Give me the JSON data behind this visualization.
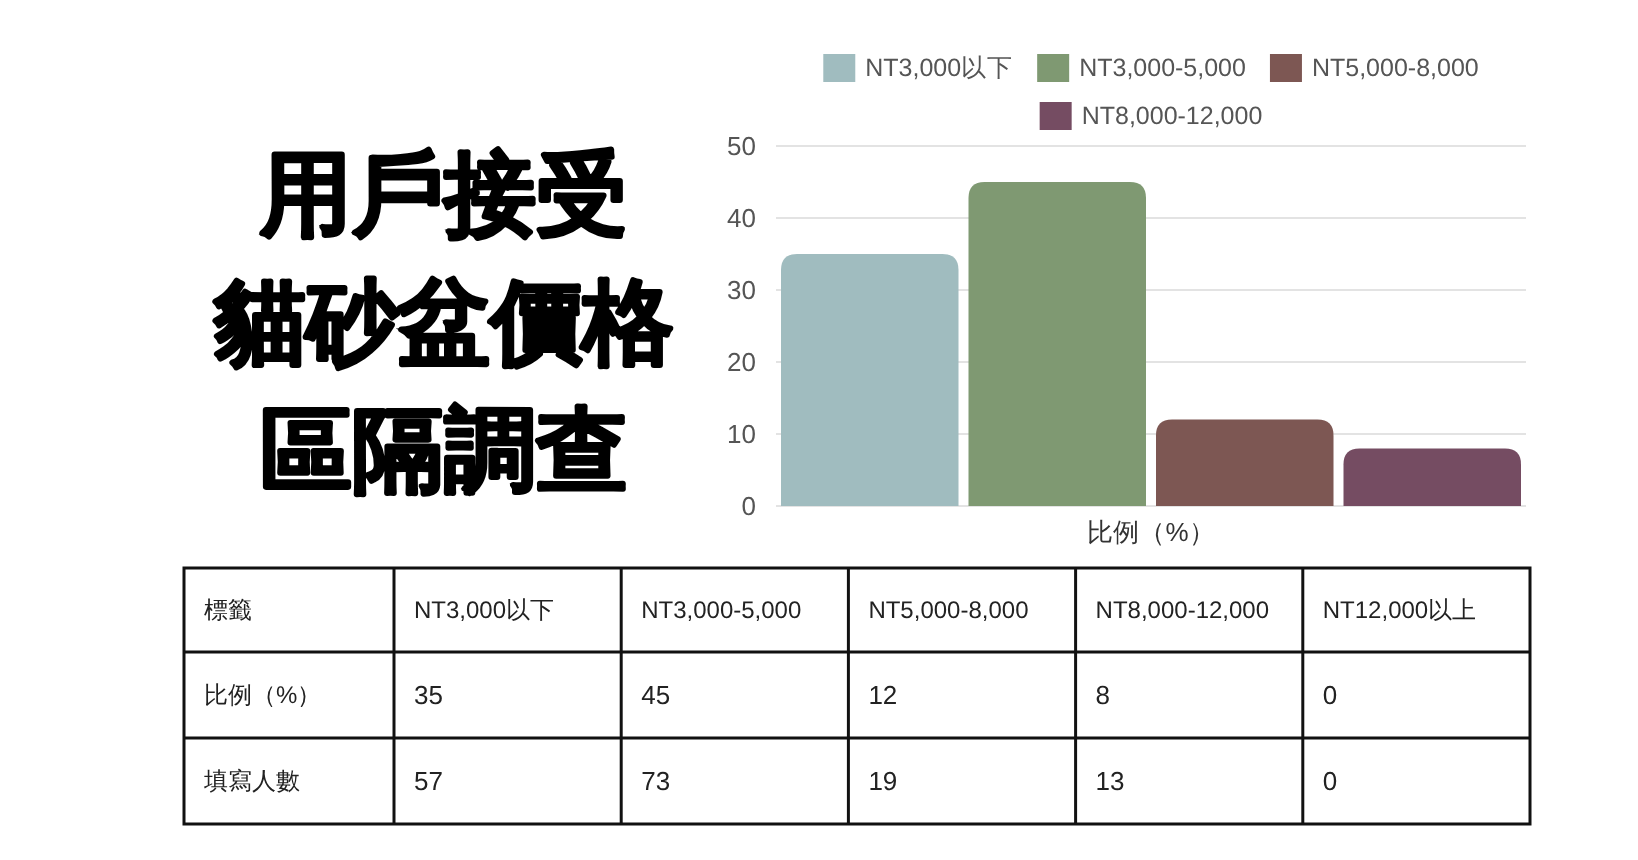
{
  "chart_data": [
    {
      "type": "bar",
      "title": "用戶接受貓砂盆價格區隔調查",
      "categories": [
        "比例（%）"
      ],
      "series": [
        {
          "name": "NT3,000以下",
          "color": "#a0bcbf",
          "values": [
            35
          ]
        },
        {
          "name": "NT3,000-5,000",
          "color": "#7f9972",
          "values": [
            45
          ]
        },
        {
          "name": "NT5,000-8,000",
          "color": "#7d5753",
          "values": [
            12
          ]
        },
        {
          "name": "NT8,000-12,000",
          "color": "#754c62",
          "values": [
            8
          ]
        }
      ],
      "ylim": [
        0,
        50
      ],
      "yticks": [
        0,
        10,
        20,
        30,
        40,
        50
      ],
      "grid": "y",
      "legend": "top"
    },
    {
      "type": "other",
      "xlabel": "標籤",
      "categories": [
        "NT3,000以下",
        "NT3,000-5,000",
        "NT5,000-8,000",
        "NT8,000-12,000",
        "NT12,000以上"
      ],
      "series": [
        {
          "name": "比例（%）",
          "values": [
            35,
            45,
            12,
            8,
            0
          ]
        },
        {
          "name": "填寫人數",
          "values": [
            57,
            73,
            19,
            13,
            0
          ]
        }
      ],
      "data_labels": true
    }
  ]
}
